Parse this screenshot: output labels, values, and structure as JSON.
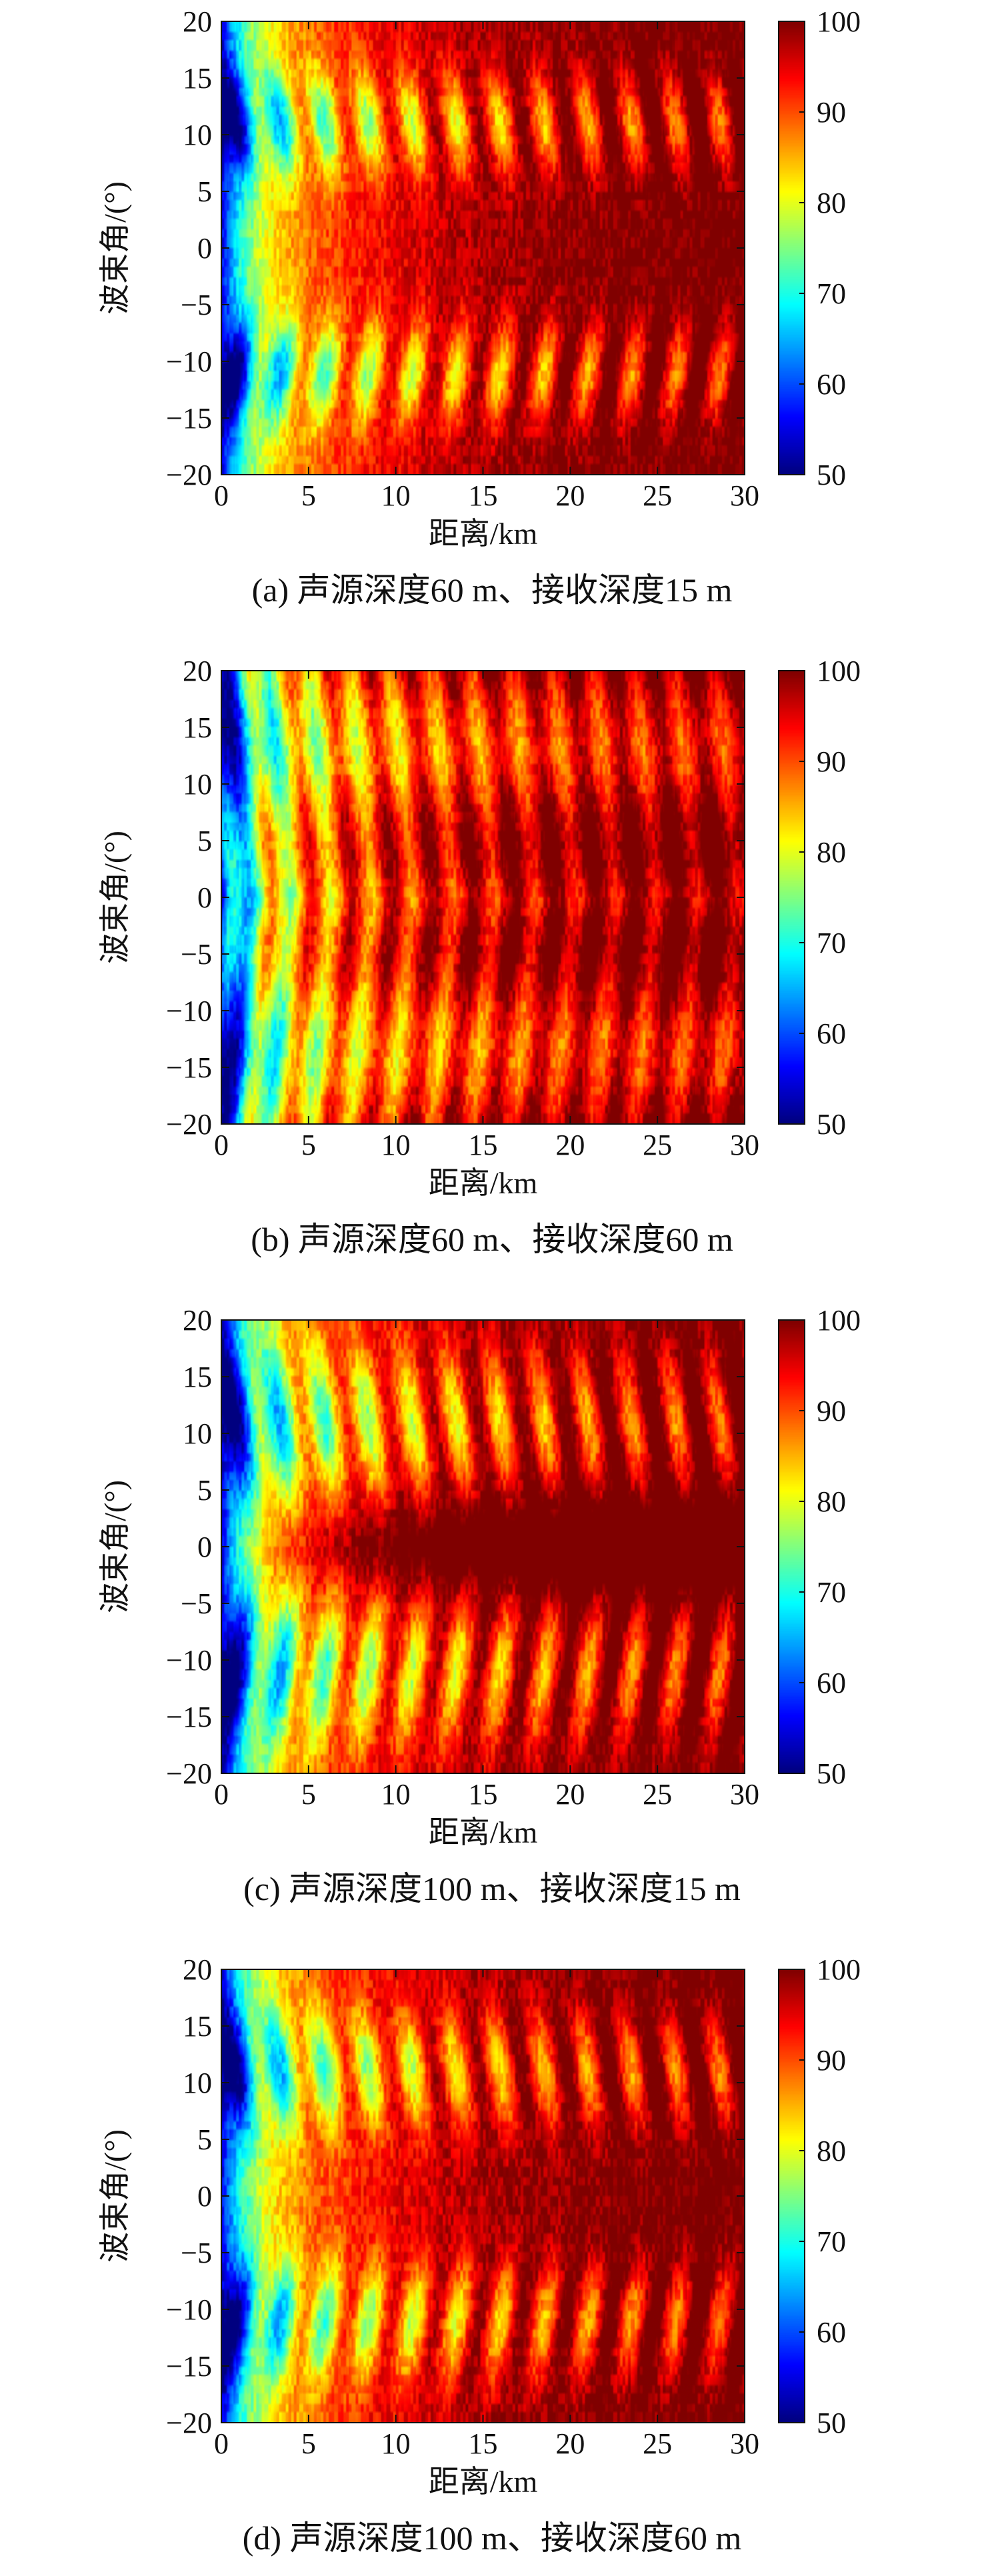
{
  "chart_data": [
    {
      "type": "heatmap",
      "caption": "(a) 声源深度60 m、接收深度15 m",
      "xlabel": "距离/km",
      "ylabel": "波束角/(°)",
      "xlim": [
        0,
        30
      ],
      "ylim": [
        -20,
        20
      ],
      "xticks": [
        "0",
        "5",
        "10",
        "15",
        "20",
        "25",
        "30"
      ],
      "yticks": [
        "20",
        "15",
        "10",
        "5",
        "0",
        "−5",
        "−10",
        "−15",
        "−20"
      ],
      "colorbar": {
        "range": [
          50,
          100
        ],
        "ticks": [
          "100",
          "90",
          "80",
          "70",
          "60",
          "50"
        ]
      }
    },
    {
      "type": "heatmap",
      "caption": "(b) 声源深度60 m、接收深度60 m",
      "xlabel": "距离/km",
      "ylabel": "波束角/(°)",
      "xlim": [
        0,
        30
      ],
      "ylim": [
        -20,
        20
      ],
      "xticks": [
        "0",
        "5",
        "10",
        "15",
        "20",
        "25",
        "30"
      ],
      "yticks": [
        "20",
        "15",
        "10",
        "5",
        "0",
        "−5",
        "−10",
        "−15",
        "−20"
      ],
      "colorbar": {
        "range": [
          50,
          100
        ],
        "ticks": [
          "100",
          "90",
          "80",
          "70",
          "60",
          "50"
        ]
      }
    },
    {
      "type": "heatmap",
      "caption": "(c) 声源深度100 m、接收深度15 m",
      "xlabel": "距离/km",
      "ylabel": "波束角/(°)",
      "xlim": [
        0,
        30
      ],
      "ylim": [
        -20,
        20
      ],
      "xticks": [
        "0",
        "5",
        "10",
        "15",
        "20",
        "25",
        "30"
      ],
      "yticks": [
        "20",
        "15",
        "10",
        "5",
        "0",
        "−5",
        "−10",
        "−15",
        "−20"
      ],
      "colorbar": {
        "range": [
          50,
          100
        ],
        "ticks": [
          "100",
          "90",
          "80",
          "70",
          "60",
          "50"
        ]
      }
    },
    {
      "type": "heatmap",
      "caption": "(d) 声源深度100 m、接收深度60 m",
      "xlabel": "距离/km",
      "ylabel": "波束角/(°)",
      "xlim": [
        0,
        30
      ],
      "ylim": [
        -20,
        20
      ],
      "xticks": [
        "0",
        "5",
        "10",
        "15",
        "20",
        "25",
        "30"
      ],
      "yticks": [
        "20",
        "15",
        "10",
        "5",
        "0",
        "−5",
        "−10",
        "−15",
        "−20"
      ],
      "colorbar": {
        "range": [
          50,
          100
        ],
        "ticks": [
          "100",
          "90",
          "80",
          "70",
          "60",
          "50"
        ]
      }
    }
  ]
}
